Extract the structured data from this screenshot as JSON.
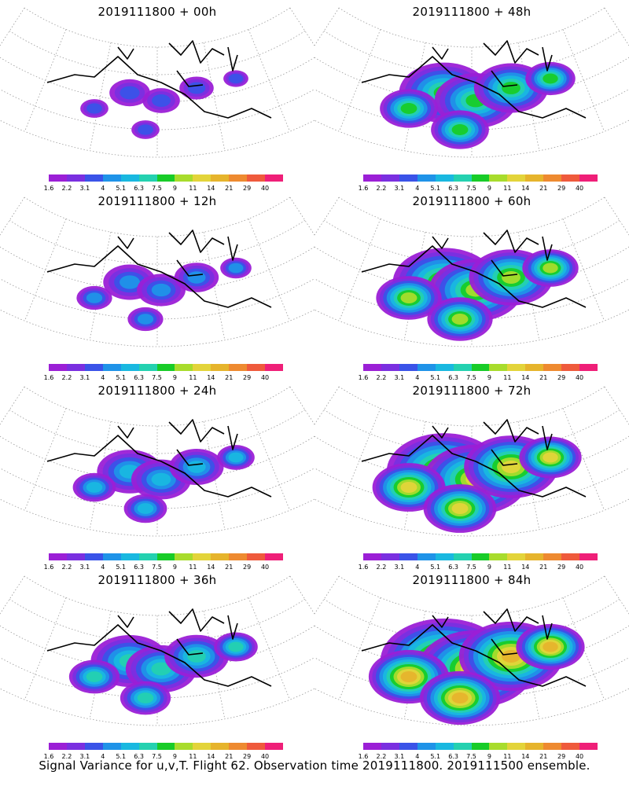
{
  "panels": [
    {
      "title": "2019111800  + 00h",
      "level": 0
    },
    {
      "title": "2019111800  + 48h",
      "level": 4
    },
    {
      "title": "2019111800  + 12h",
      "level": 1
    },
    {
      "title": "2019111800  + 60h",
      "level": 5
    },
    {
      "title": "2019111800  + 24h",
      "level": 2
    },
    {
      "title": "2019111800  + 72h",
      "level": 6
    },
    {
      "title": "2019111800  + 36h",
      "level": 3
    },
    {
      "title": "2019111800  + 84h",
      "level": 7
    }
  ],
  "colorbar": {
    "labels": [
      "1.6",
      "2.2",
      "3.1",
      "4",
      "5.1",
      "6.3",
      "7.5",
      "9",
      "11",
      "14",
      "21",
      "29",
      "40"
    ],
    "colors": [
      "#9b1fd6",
      "#7a2fe0",
      "#3a53e8",
      "#1f93e8",
      "#19b8e0",
      "#24d1b0",
      "#18cc28",
      "#a8dc2c",
      "#e3d43a",
      "#e6b42c",
      "#ee8a30",
      "#ef5a3c",
      "#ef1f78"
    ]
  },
  "footer": "Signal Variance for u,v,T. Flight 62. Observation time 2019111800. 2019111500 ensemble."
}
